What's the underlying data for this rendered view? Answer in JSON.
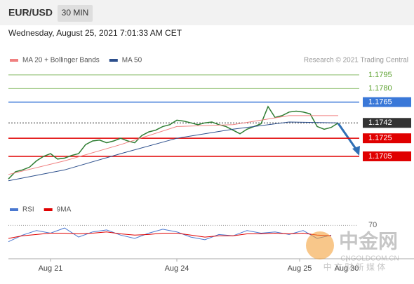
{
  "header": {
    "symbol": "EUR/USD",
    "interval": "30 MIN"
  },
  "chart_data": [
    {
      "type": "line",
      "subtitle": "Wednesday, August 25, 2021 7:01:33 AM CET",
      "source": "Research © 2021 Trading Central",
      "xlim": [
        0,
        49.6
      ],
      "ylim": [
        1.166,
        1.1805
      ],
      "x": [
        0,
        1,
        2,
        3,
        4,
        5,
        6,
        7,
        8,
        9,
        10,
        11,
        12,
        13,
        14,
        15,
        16,
        17,
        18,
        19,
        20,
        21,
        22,
        23,
        24,
        25,
        26,
        27,
        28,
        29,
        30,
        31,
        32,
        33,
        34,
        35,
        36,
        37,
        38,
        39,
        40,
        41,
        42,
        43,
        44,
        45,
        46,
        47
      ],
      "values": [
        1.168,
        1.1688,
        1.169,
        1.1693,
        1.17,
        1.1705,
        1.1708,
        1.1702,
        1.1703,
        1.1706,
        1.1708,
        1.1718,
        1.1722,
        1.1723,
        1.172,
        1.1722,
        1.1725,
        1.1722,
        1.172,
        1.1728,
        1.1732,
        1.1734,
        1.1738,
        1.174,
        1.1745,
        1.1744,
        1.1742,
        1.174,
        1.1742,
        1.1743,
        1.174,
        1.1738,
        1.1734,
        1.173,
        1.1735,
        1.1738,
        1.1741,
        1.176,
        1.1748,
        1.175,
        1.1754,
        1.1755,
        1.1754,
        1.1752,
        1.1738,
        1.1735,
        1.1737,
        1.1742
      ],
      "color": "#2e7d32",
      "series": [
        {
          "name": "MA 20 + Bollinger Bands",
          "color": "#f08080",
          "x": [
            0,
            8,
            16,
            24,
            32,
            40,
            47
          ],
          "values": [
            1.1685,
            1.17,
            1.1718,
            1.1738,
            1.174,
            1.175,
            1.175
          ]
        },
        {
          "name": "MA 50",
          "color": "#2c4f8c",
          "x": [
            0,
            8,
            16,
            24,
            32,
            40,
            47
          ],
          "values": [
            1.1678,
            1.169,
            1.1708,
            1.1725,
            1.1735,
            1.1743,
            1.1742
          ]
        }
      ],
      "levels": [
        {
          "value": 1.1795,
          "color": "#5aa02c",
          "box": false
        },
        {
          "value": 1.178,
          "label": "1.1780",
          "color": "#5aa02c",
          "box": false
        },
        {
          "value": 1.1765,
          "color": "#3a78d8",
          "box": true
        },
        {
          "value": 1.1742,
          "color": "#333333",
          "box": true,
          "dotted": true
        },
        {
          "value": 1.1725,
          "color": "#e00000",
          "box": true
        },
        {
          "value": 1.1705,
          "color": "#e00000",
          "box": true
        }
      ]
    },
    {
      "type": "line",
      "xlim": [
        0,
        49.6
      ],
      "ylim": [
        20,
        80
      ],
      "yticks": [
        70
      ],
      "xticks": [
        {
          "value": 6,
          "label": "Aug 21"
        },
        {
          "value": 24,
          "label": "Aug 24"
        },
        {
          "value": 41.5,
          "label": "Aug 25"
        },
        {
          "value": 48.2,
          "label": "Aug 30"
        }
      ],
      "series": [
        {
          "name": "RSI",
          "color": "#4a78d0",
          "x": [
            0,
            2,
            4,
            6,
            8,
            10,
            12,
            14,
            16,
            18,
            20,
            22,
            24,
            26,
            28,
            30,
            32,
            34,
            36,
            38,
            40,
            42,
            44,
            46
          ],
          "values": [
            45,
            55,
            62,
            58,
            66,
            52,
            60,
            63,
            55,
            50,
            58,
            64,
            60,
            52,
            48,
            56,
            54,
            62,
            58,
            60,
            56,
            62,
            50,
            55
          ]
        },
        {
          "name": "9MA",
          "color": "#e00000",
          "x": [
            0,
            2,
            4,
            6,
            8,
            10,
            12,
            14,
            16,
            18,
            20,
            22,
            24,
            26,
            28,
            30,
            32,
            34,
            36,
            38,
            40,
            42,
            44,
            46
          ],
          "values": [
            50,
            54,
            56,
            58,
            58,
            57,
            58,
            60,
            57,
            55,
            56,
            58,
            58,
            55,
            52,
            54,
            54,
            57,
            57,
            58,
            57,
            58,
            55,
            54
          ]
        }
      ]
    }
  ],
  "watermark": {
    "name": "中金网",
    "site": "CNGOLDCOM.CN",
    "tagline": "中 文 财 新 媒 体"
  }
}
